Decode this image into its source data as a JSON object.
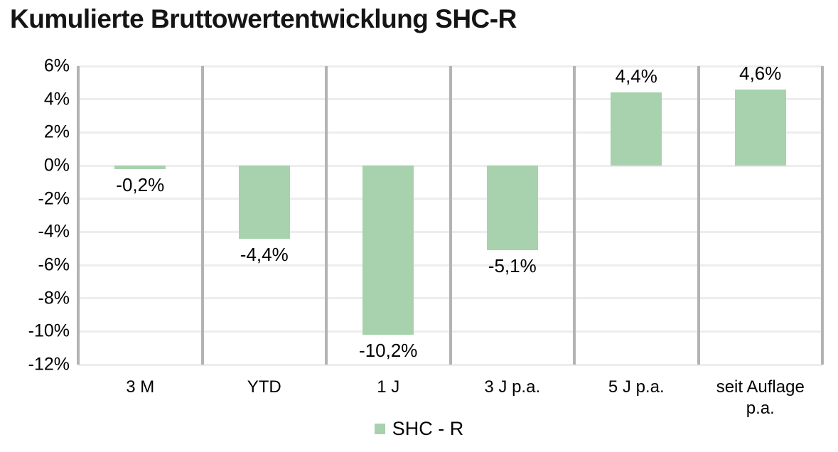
{
  "title": "Kumulierte Bruttowertentwicklung SHC-R",
  "legend": {
    "label": "SHC - R",
    "swatch_color": "#a7d2ad"
  },
  "colors": {
    "bar": "#a7d2ad",
    "horizontal_gridline": "#ededed",
    "vertical_separator": "#b3b3b3",
    "text": "#000000"
  },
  "chart_data": {
    "type": "bar",
    "title": "Kumulierte Bruttowertentwicklung SHC-R",
    "categories": [
      "3 M",
      "YTD",
      "1 J",
      "3 J p.a.",
      "5 J p.a.",
      "seit Auflage p.a."
    ],
    "values": [
      -0.2,
      -4.4,
      -10.2,
      -5.1,
      4.4,
      4.6
    ],
    "value_labels": [
      "-0,2%",
      "-4,4%",
      "-10,2%",
      "-5,1%",
      "4,4%",
      "4,6%"
    ],
    "series_name": "SHC - R",
    "xlabel": "",
    "ylabel": "",
    "ylim": [
      -12,
      6
    ],
    "ytick_step": 2,
    "ytick_labels": [
      "6%",
      "4%",
      "2%",
      "0%",
      "-2%",
      "-4%",
      "-6%",
      "-8%",
      "-10%",
      "-12%"
    ],
    "grid": "horizontal light gridlines every 2%, gray vertical separators between categories",
    "legend_position": "bottom-center",
    "bar_color": "#a7d2ad"
  }
}
